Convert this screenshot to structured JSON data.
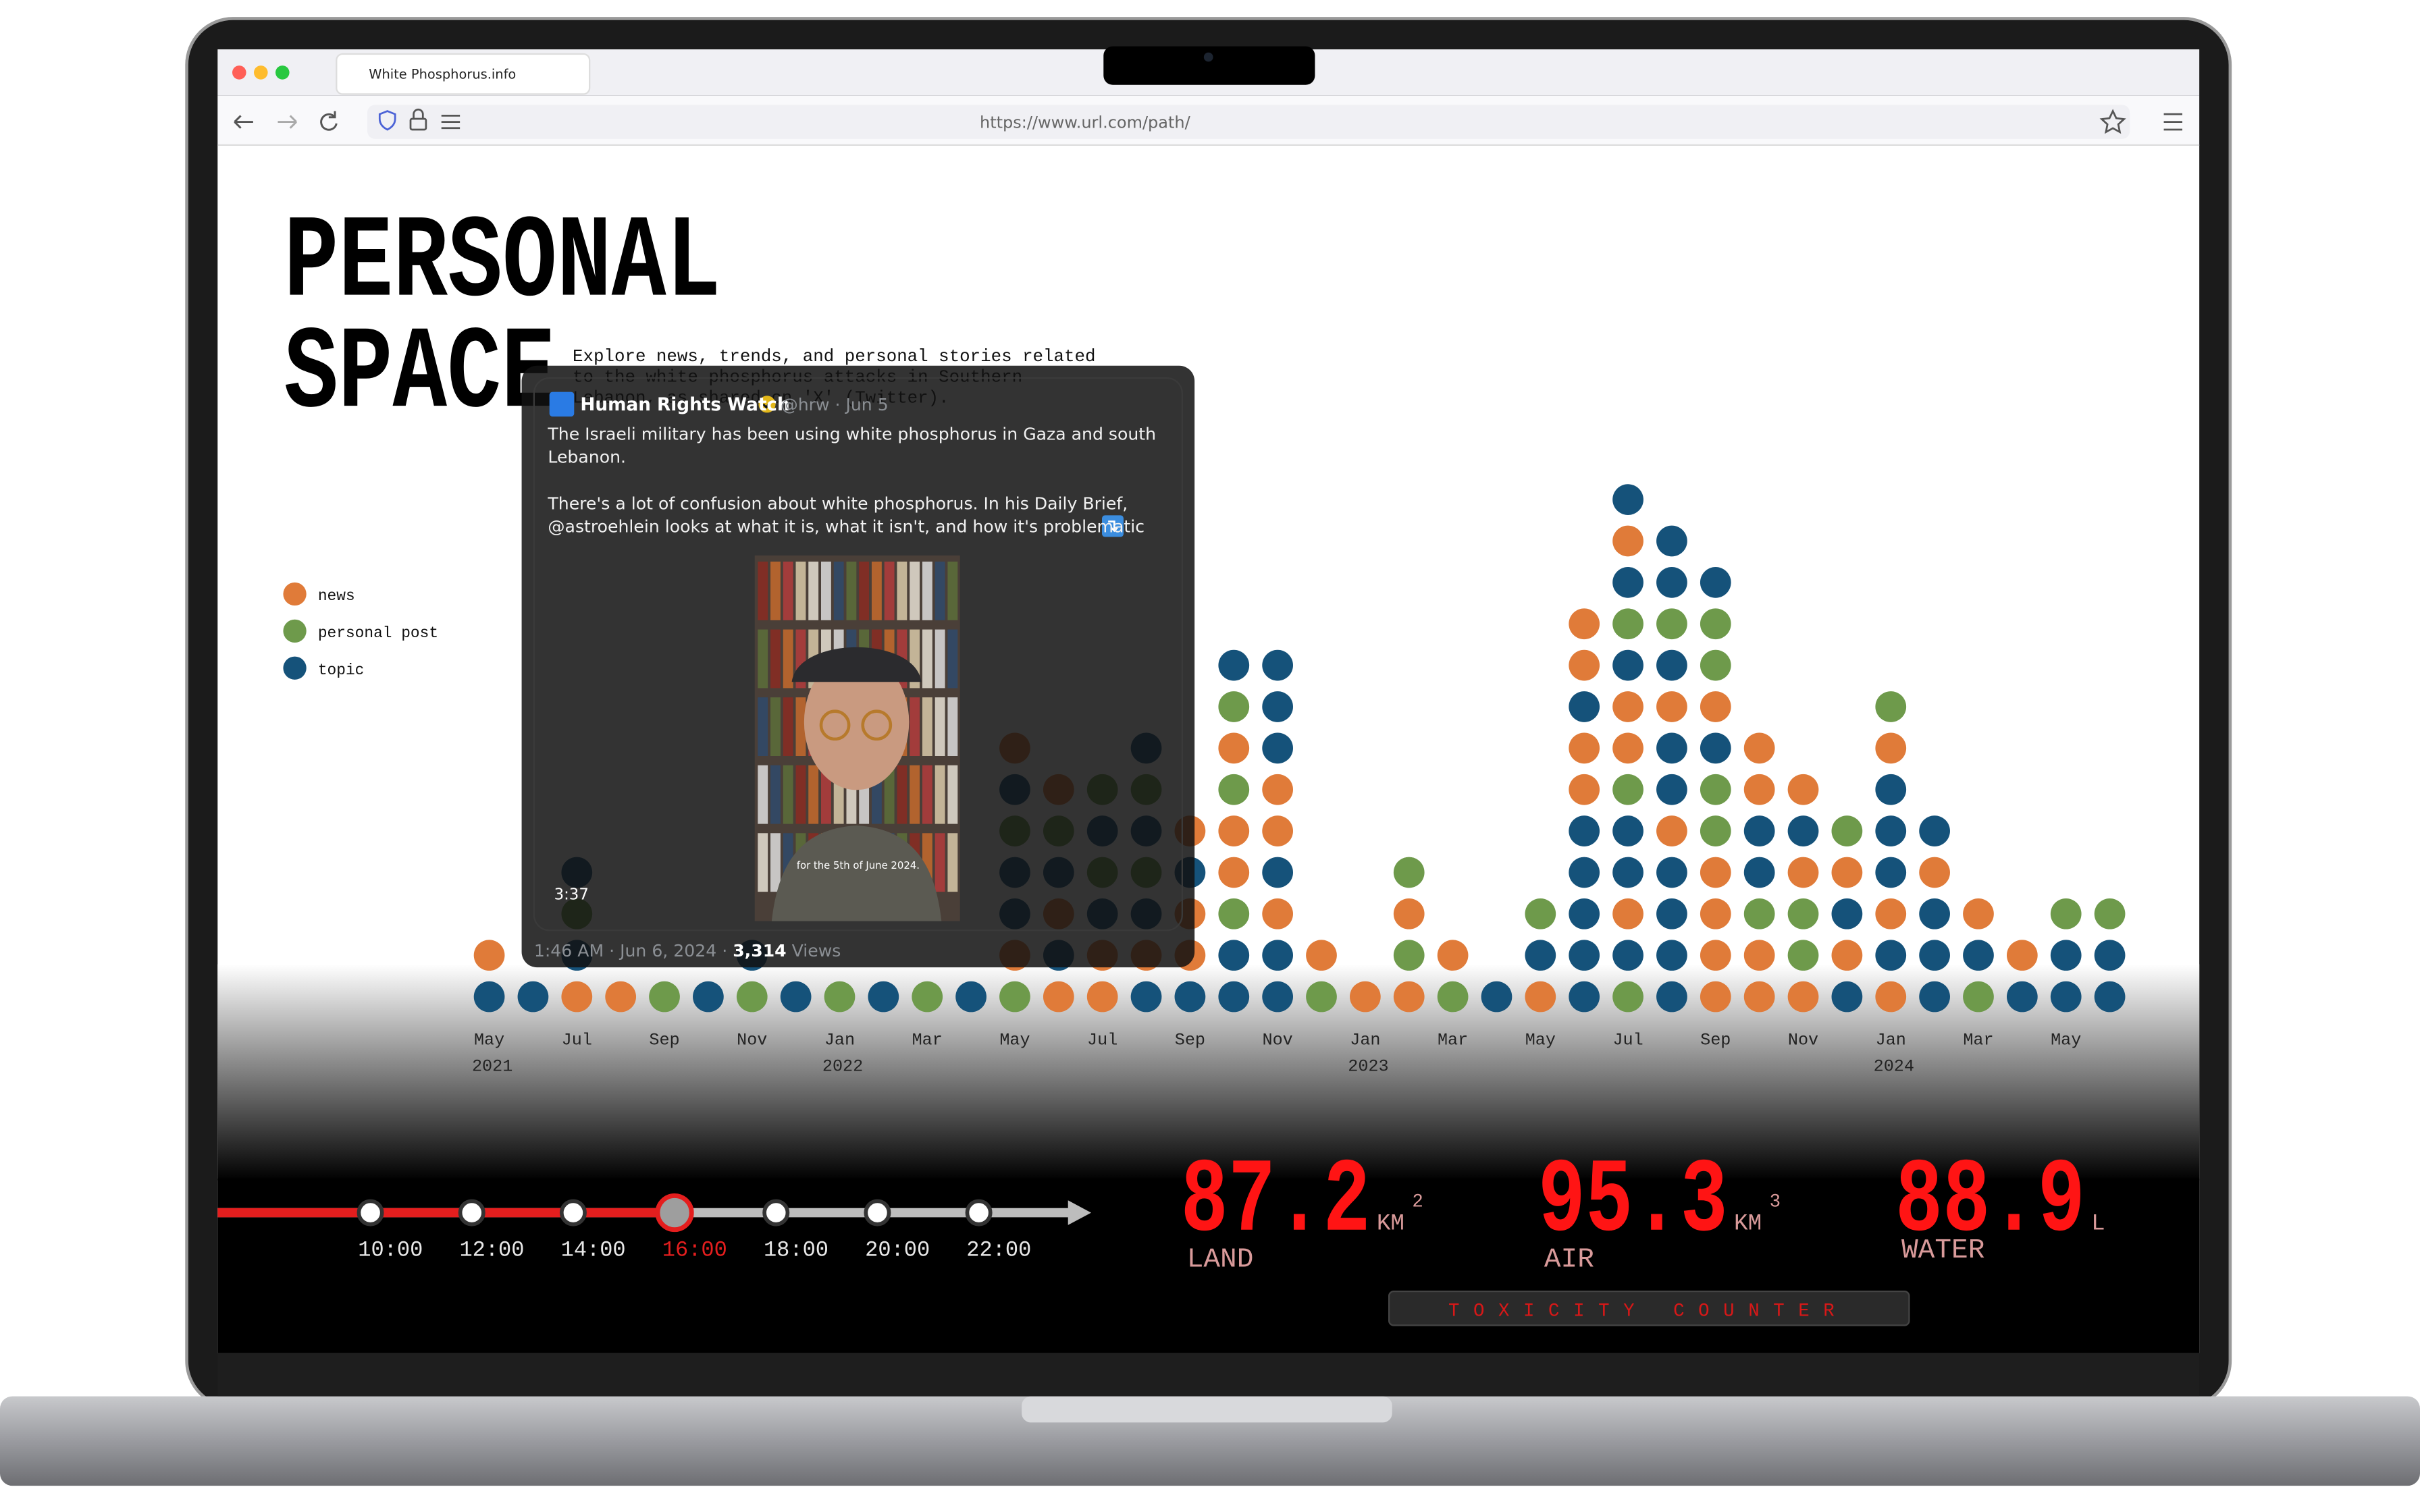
{
  "browser": {
    "tab_title": "White Phosphorus.info",
    "url": "https://www.url.com/path/"
  },
  "header": {
    "title_lines": [
      "PERSONAL",
      "SPACE"
    ],
    "description_lines": [
      "Explore news, trends, and personal stories related",
      "to the white phosphorus attacks in Southern",
      "Lebanon, as shared on 'X' (Twitter)."
    ]
  },
  "chart_data": {
    "type": "dotstack",
    "groups": [
      {
        "name": "news",
        "color": "#e07b39"
      },
      {
        "name": "personal post",
        "color": "#6e9a4b"
      },
      {
        "name": "topic",
        "color": "#15527a"
      }
    ],
    "categories": [
      "May",
      null,
      "Jul",
      null,
      "Sep",
      null,
      "Nov",
      null,
      "Jan",
      null,
      "Mar",
      null,
      "May",
      null,
      "Jul",
      null,
      "Sep",
      null,
      "Nov",
      null,
      "Jan",
      null,
      "Mar",
      null,
      "May",
      null,
      "Jul",
      null,
      "Sep",
      null,
      "Nov",
      null,
      "Jan",
      null,
      "Mar",
      null,
      "May",
      null
    ],
    "category_years": [
      "2021",
      null,
      null,
      null,
      null,
      null,
      null,
      null,
      "2022",
      null,
      null,
      null,
      null,
      null,
      null,
      null,
      null,
      null,
      null,
      null,
      "2023",
      null,
      null,
      null,
      null,
      null,
      null,
      null,
      null,
      null,
      null,
      null,
      "2024",
      null,
      null,
      null,
      null,
      null
    ],
    "stacks": [
      [
        2,
        0
      ],
      [
        2
      ],
      [
        0,
        2,
        1,
        2
      ],
      [
        0
      ],
      [
        1
      ],
      [
        2
      ],
      [
        1,
        2
      ],
      [
        2
      ],
      [
        1
      ],
      [
        2
      ],
      [
        1
      ],
      [
        2
      ],
      [
        1,
        0,
        2,
        2,
        1,
        2,
        0
      ],
      [
        0,
        2,
        0,
        2,
        1,
        0
      ],
      [
        0,
        0,
        2,
        1,
        2,
        1
      ],
      [
        2,
        0,
        2,
        1,
        2,
        1,
        2
      ],
      [
        2,
        0,
        0,
        2,
        0
      ],
      [
        2,
        2,
        1,
        0,
        0,
        1,
        0,
        1,
        2
      ],
      [
        2,
        2,
        0,
        2,
        0,
        0,
        2,
        2,
        2
      ],
      [
        1,
        0
      ],
      [
        0
      ],
      [
        0,
        1,
        0,
        1
      ],
      [
        1,
        0
      ],
      [
        2
      ],
      [
        0,
        2,
        1
      ],
      [
        2,
        2,
        2,
        2,
        2,
        0,
        0,
        2,
        0,
        0
      ],
      [
        1,
        2,
        0,
        2,
        2,
        1,
        0,
        0,
        2,
        1,
        2,
        0,
        2
      ],
      [
        2,
        2,
        2,
        2,
        0,
        2,
        2,
        0,
        2,
        1,
        2,
        2
      ],
      [
        0,
        0,
        0,
        0,
        1,
        1,
        2,
        0,
        1,
        1,
        2
      ],
      [
        0,
        0,
        1,
        2,
        2,
        0,
        0
      ],
      [
        0,
        1,
        1,
        0,
        2,
        0
      ],
      [
        2,
        0,
        2,
        0,
        1
      ],
      [
        0,
        2,
        0,
        2,
        2,
        2,
        0,
        1
      ],
      [
        2,
        2,
        2,
        0,
        2
      ],
      [
        1,
        2,
        0
      ],
      [
        2,
        0
      ],
      [
        2,
        2,
        1
      ],
      [
        2,
        2,
        1
      ]
    ]
  },
  "tweet": {
    "author": "Human Rights Watch",
    "handle": "@hrw · Jun 5",
    "lines": [
      "The Israeli military has been using white phosphorus in Gaza and south",
      "Lebanon.",
      "There's a lot of confusion about white phosphorus. In his Daily Brief,",
      "@astroehlein looks at what it is, what it isn't, and how it's problematic"
    ],
    "duration": "3:37",
    "video_caption": "for the 5th of June 2024.",
    "time": "1:46 AM · Jun 6, 2024 · ",
    "views": "3,314",
    "views_label": " Views"
  },
  "timeline": {
    "times": [
      "10:00",
      "12:00",
      "14:00",
      "16:00",
      "18:00",
      "20:00",
      "22:00"
    ],
    "selected": "16:00"
  },
  "counters": {
    "items": [
      {
        "value": 87.2,
        "unit": "KM",
        "power": 2,
        "label": "LAND"
      },
      {
        "value": 95.3,
        "unit": "KM",
        "power": 3,
        "label": "AIR"
      },
      {
        "value": 88.9,
        "unit": "L",
        "label": "WATER"
      }
    ],
    "title": "TOXICITY COUNTER"
  }
}
